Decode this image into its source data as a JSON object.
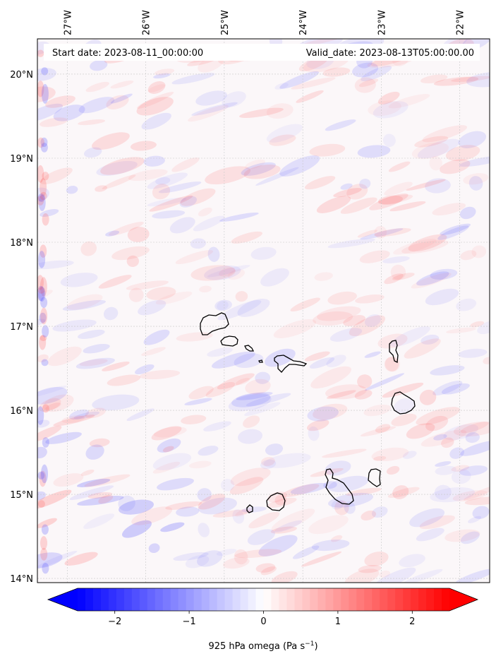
{
  "map": {
    "start_date": "Start date: 2023-08-11_00:00:00",
    "valid_date": "Valid_date: 2023-08-13T05:00:00.00",
    "lon_labels": [
      "27°W",
      "26°W",
      "25°W",
      "24°W",
      "23°W",
      "22°W"
    ],
    "lat_labels": [
      "20°N",
      "19°N",
      "18°N",
      "17°N",
      "16°N",
      "15°N",
      "14°N"
    ],
    "extent": {
      "lon": [
        -27.38,
        -21.62
      ],
      "lat": [
        13.95,
        20.42
      ]
    }
  },
  "colorbar": {
    "ticks": [
      "−2",
      "−1",
      "0",
      "1",
      "2"
    ],
    "tick_values": [
      -2,
      -1,
      0,
      1,
      2
    ],
    "range": [
      -2.5,
      2.5
    ],
    "label": "925 hPa omega (Pa s",
    "label_sup": "−1",
    "label_end": ")",
    "colors": {
      "min": "#0000ff",
      "mid": "#ffffff",
      "max": "#ff0000"
    }
  },
  "colors": {
    "coast": "#000000",
    "grid": "#c8c8c8",
    "frame": "#000000"
  }
}
